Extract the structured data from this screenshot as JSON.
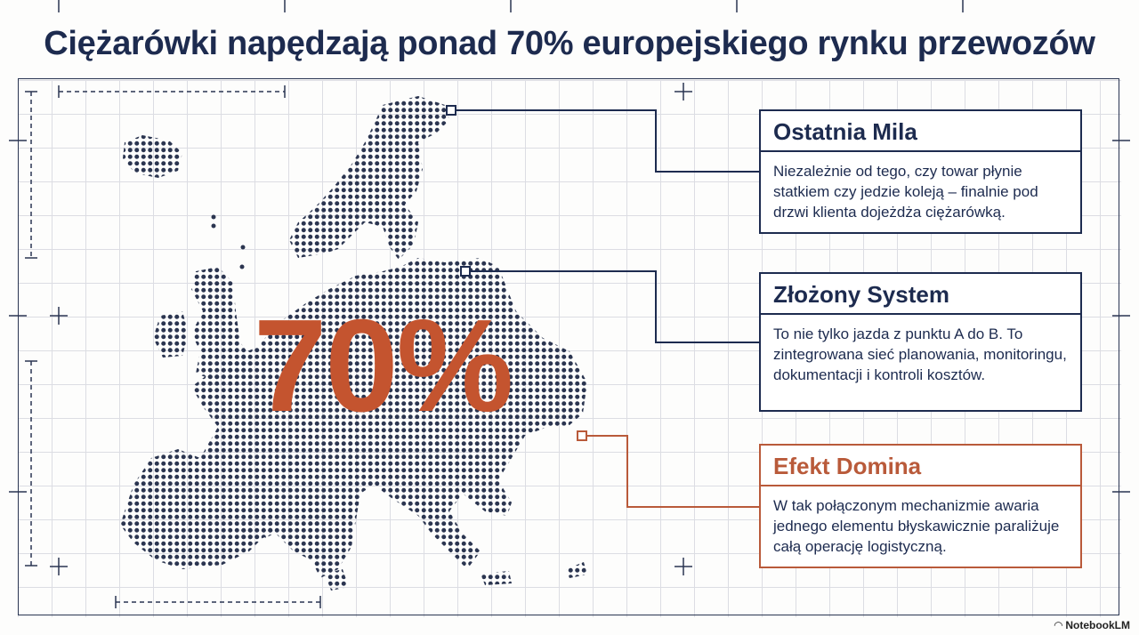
{
  "title": "Ciężarówki napędzają ponad 70% europejskiego rynku przewozów",
  "highlight": "70%",
  "cards": [
    {
      "heading": "Ostatnia Mila",
      "text": "Niezależnie od tego, czy towar płynie statkiem czy jedzie koleją – finalnie pod drzwi klienta dojeżdża ciężarówką."
    },
    {
      "heading": "Złożony System",
      "text": "To nie tylko jazda z punktu A do B. To zintegrowana sieć planowania, monitoringu, dokumentacji i kontroli kosztów."
    },
    {
      "heading": "Efekt Domina",
      "text": "W tak połączonym mechanizmie awaria jednego elementu błyskawicznie paraliżuje całą operację logistyczną."
    }
  ],
  "colors": {
    "navy": "#1d2b4f",
    "accent": "#c4542f"
  },
  "branding": "NotebookLM"
}
